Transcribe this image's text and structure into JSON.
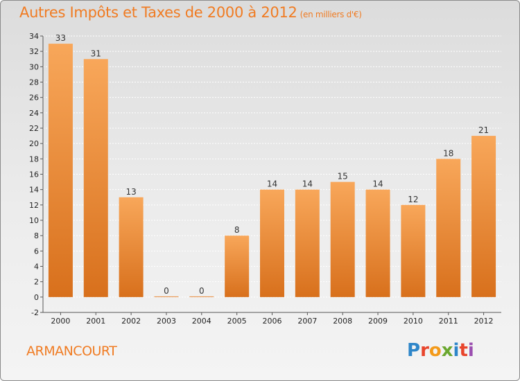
{
  "title": "Autres Impôts et Taxes de 2000 à 2012",
  "subtitle": "(en milliers d'€)",
  "commune": "ARMANCOURT",
  "logo": {
    "letters": [
      "P",
      "r",
      "o",
      "x",
      "i",
      "t",
      "i"
    ],
    "colors": [
      "#2e86c9",
      "#e8452c",
      "#f39a1a",
      "#6aa72f",
      "#2e86c9",
      "#e8452c",
      "#9b4fb0"
    ]
  },
  "colors": {
    "bar_light": "#f8a75a",
    "bar_dark": "#d8701c",
    "accent": "#f07b22"
  },
  "chart_data": {
    "type": "bar",
    "categories": [
      "2000",
      "2001",
      "2002",
      "2003",
      "2004",
      "2005",
      "2006",
      "2007",
      "2008",
      "2009",
      "2010",
      "2011",
      "2012"
    ],
    "values": [
      33,
      31,
      13,
      0,
      0,
      8,
      14,
      14,
      15,
      14,
      12,
      18,
      21
    ],
    "ylim": [
      -2,
      34
    ],
    "yticks": [
      -2,
      0,
      2,
      4,
      6,
      8,
      10,
      12,
      14,
      16,
      18,
      20,
      22,
      24,
      26,
      28,
      30,
      32,
      34
    ],
    "grid": true,
    "title": "Autres Impôts et Taxes de 2000 à 2012",
    "xlabel": "",
    "ylabel": ""
  }
}
